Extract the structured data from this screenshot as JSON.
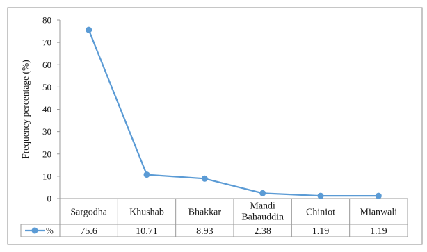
{
  "chart_data": {
    "type": "line",
    "ylabel": "Frequency percentage (%)",
    "ylim": [
      0,
      80
    ],
    "yticks": [
      0,
      10,
      20,
      30,
      40,
      50,
      60,
      70,
      80
    ],
    "categories": [
      "Sargodha",
      "Khushab",
      "Bhakkar",
      "Mandi Bahauddin",
      "Chiniot",
      "Mianwali"
    ],
    "category_lines": [
      [
        "Sargodha"
      ],
      [
        "Khushab"
      ],
      [
        "Bhakkar"
      ],
      [
        "Mandi",
        "Bahauddin"
      ],
      [
        "Chiniot"
      ],
      [
        "Mianwali"
      ]
    ],
    "series": [
      {
        "name": "%",
        "values": [
          75.6,
          10.71,
          8.93,
          2.38,
          1.19,
          1.19
        ],
        "labels": [
          "75.6",
          "10.71",
          "8.93",
          "2.38",
          "1.19",
          "1.19"
        ],
        "color": "#5b9bd5"
      }
    ],
    "grid": false,
    "legend": "data-table"
  }
}
